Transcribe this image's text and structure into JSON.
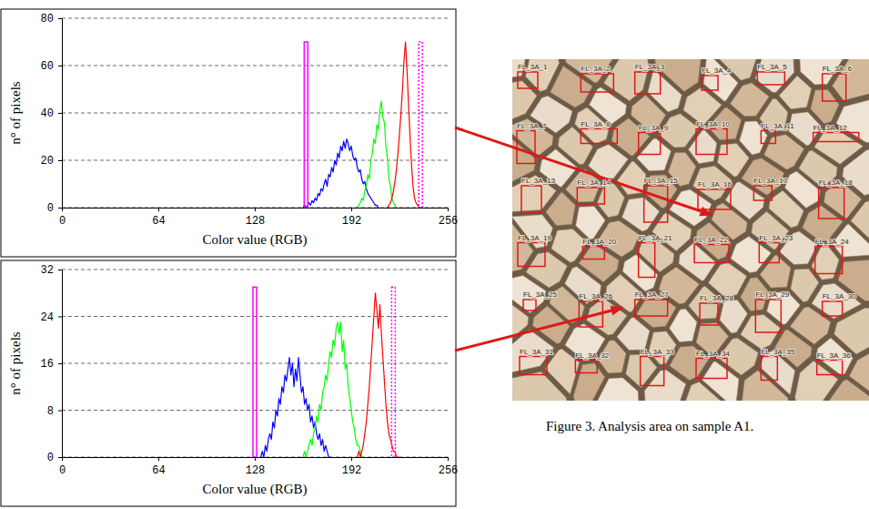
{
  "chart_data": [
    {
      "type": "line",
      "x_label": "Color value (RGB)",
      "y_label": "n° of pixels",
      "xlim": [
        0,
        256
      ],
      "xticks": [
        0,
        64,
        128,
        192,
        256
      ],
      "ylim": [
        0,
        80
      ],
      "yticks": [
        0,
        20,
        40,
        60,
        80
      ],
      "grid": true,
      "series": [
        {
          "color": "#0000ff",
          "x": [
            160,
            161,
            162,
            163,
            164,
            165,
            166,
            167,
            168,
            169,
            170,
            171,
            172,
            173,
            174,
            175,
            176,
            177,
            178,
            179,
            180,
            181,
            182,
            183,
            184,
            185,
            186,
            187,
            188,
            189,
            190,
            191,
            192,
            193,
            194,
            195,
            196,
            197,
            198,
            199,
            200,
            201,
            202,
            203,
            204,
            205,
            206,
            207,
            208,
            209,
            210
          ],
          "values": [
            0,
            1,
            0,
            1,
            2,
            1,
            3,
            2,
            4,
            3,
            6,
            5,
            8,
            7,
            10,
            12,
            9,
            14,
            13,
            17,
            15,
            20,
            18,
            23,
            21,
            26,
            24,
            28,
            25,
            29,
            27,
            24,
            26,
            22,
            20,
            21,
            17,
            15,
            16,
            12,
            10,
            11,
            8,
            6,
            5,
            4,
            3,
            2,
            1,
            1,
            0
          ]
        },
        {
          "color": "#00ff00",
          "x": [
            196,
            197,
            198,
            199,
            200,
            201,
            202,
            203,
            204,
            205,
            206,
            207,
            208,
            209,
            210,
            211,
            212,
            213,
            214,
            215,
            216,
            217,
            218,
            219,
            220,
            221,
            222
          ],
          "values": [
            0,
            1,
            2,
            4,
            3,
            7,
            9,
            14,
            12,
            20,
            23,
            29,
            27,
            35,
            33,
            41,
            45,
            38,
            36,
            26,
            21,
            12,
            9,
            4,
            2,
            1,
            0
          ]
        },
        {
          "color": "#ff0000",
          "x": [
            216,
            217,
            218,
            219,
            220,
            221,
            222,
            223,
            224,
            225,
            226,
            227,
            228,
            229,
            230,
            231,
            232,
            233,
            234,
            235,
            236,
            237,
            238
          ],
          "values": [
            0,
            1,
            2,
            4,
            7,
            11,
            16,
            23,
            31,
            40,
            50,
            62,
            70,
            58,
            44,
            30,
            18,
            9,
            4,
            2,
            1,
            0,
            0
          ]
        },
        {
          "type": "bar",
          "color": "#ff00ff",
          "line_style": "solid",
          "x": [
            162
          ],
          "values": [
            70
          ]
        },
        {
          "type": "bar",
          "color": "#ff00ff",
          "line_style": "dotted",
          "x": [
            238
          ],
          "values": [
            70
          ]
        }
      ]
    },
    {
      "type": "line",
      "x_label": "Color value (RGB)",
      "y_label": "n° of pixels",
      "xlim": [
        0,
        256
      ],
      "xticks": [
        0,
        64,
        128,
        192,
        256
      ],
      "ylim": [
        0,
        32
      ],
      "yticks": [
        0,
        8,
        16,
        24,
        32
      ],
      "grid": true,
      "series": [
        {
          "color": "#0000ff",
          "x": [
            132,
            133,
            134,
            135,
            136,
            137,
            138,
            139,
            140,
            141,
            142,
            143,
            144,
            145,
            146,
            147,
            148,
            149,
            150,
            151,
            152,
            153,
            154,
            155,
            156,
            157,
            158,
            159,
            160,
            161,
            162,
            163,
            164,
            165,
            166,
            167,
            168,
            169,
            170,
            171,
            172,
            173,
            174,
            175,
            176,
            177,
            178
          ],
          "values": [
            0,
            1,
            0,
            2,
            1,
            3,
            4,
            3,
            6,
            5,
            8,
            7,
            10,
            9,
            12,
            11,
            14,
            13,
            15,
            17,
            14,
            16,
            12,
            15,
            13,
            17,
            14,
            11,
            12,
            9,
            10,
            8,
            9,
            6,
            7,
            5,
            6,
            4,
            3,
            4,
            2,
            3,
            1,
            2,
            1,
            0,
            0
          ]
        },
        {
          "color": "#00ff00",
          "x": [
            160,
            161,
            162,
            163,
            164,
            165,
            166,
            167,
            168,
            169,
            170,
            171,
            172,
            173,
            174,
            175,
            176,
            177,
            178,
            179,
            180,
            181,
            182,
            183,
            184,
            185,
            186,
            187,
            188,
            189,
            190,
            191,
            192,
            193,
            194,
            195,
            196,
            197,
            198,
            199,
            200
          ],
          "values": [
            0,
            1,
            0,
            1,
            2,
            3,
            2,
            4,
            5,
            7,
            6,
            9,
            8,
            11,
            12,
            14,
            13,
            16,
            18,
            17,
            20,
            19,
            22,
            23,
            21,
            23,
            18,
            20,
            15,
            16,
            12,
            10,
            8,
            6,
            5,
            3,
            2,
            2,
            1,
            0,
            0
          ]
        },
        {
          "color": "#ff0000",
          "x": [
            196,
            197,
            198,
            199,
            200,
            201,
            202,
            203,
            204,
            205,
            206,
            207,
            208,
            209,
            210,
            211,
            212,
            213,
            214,
            215,
            216,
            217,
            218,
            219,
            220,
            221,
            222,
            223,
            224
          ],
          "values": [
            0,
            1,
            0,
            1,
            2,
            4,
            6,
            9,
            12,
            16,
            20,
            24,
            28,
            25,
            22,
            26,
            21,
            17,
            13,
            9,
            6,
            4,
            3,
            2,
            1,
            1,
            0,
            0,
            0
          ]
        },
        {
          "type": "bar",
          "color": "#ff00ff",
          "line_style": "solid",
          "x": [
            128
          ],
          "values": [
            29
          ]
        },
        {
          "type": "bar",
          "color": "#ff00ff",
          "line_style": "dotted",
          "x": [
            220
          ],
          "values": [
            29
          ]
        }
      ]
    }
  ],
  "figure": {
    "caption": "Figure 3. Analysis area on sample A1.",
    "region_labels": [
      "FL_3A_1",
      "FL_3A_2",
      "FL_3A_3",
      "FL_3A_4",
      "FL_3A_5",
      "FL_3A_6",
      "FL_3A_7",
      "FL_3A_8",
      "FL_3A_9",
      "FL_3A_10",
      "FL_3A_11",
      "FL_3A_12",
      "FL_3A_13",
      "FL_3A_14",
      "FL_3A_15",
      "FL_3A_16",
      "FL_3A_17",
      "FL_3A_18",
      "FL_3A_19",
      "FL_3A_20",
      "FL_3A_21",
      "FL_3A_22",
      "FL_3A_23",
      "FL_3A_24",
      "FL_3A_25",
      "FL_3A_26",
      "FL_3A_27",
      "FL_3A_28",
      "FL_3A_29",
      "FL_3A_30",
      "FL_3A_31",
      "FL_3A_32",
      "FL_3A_33",
      "FL_3A_34",
      "FL_3A_35",
      "FL_3A_36"
    ]
  }
}
